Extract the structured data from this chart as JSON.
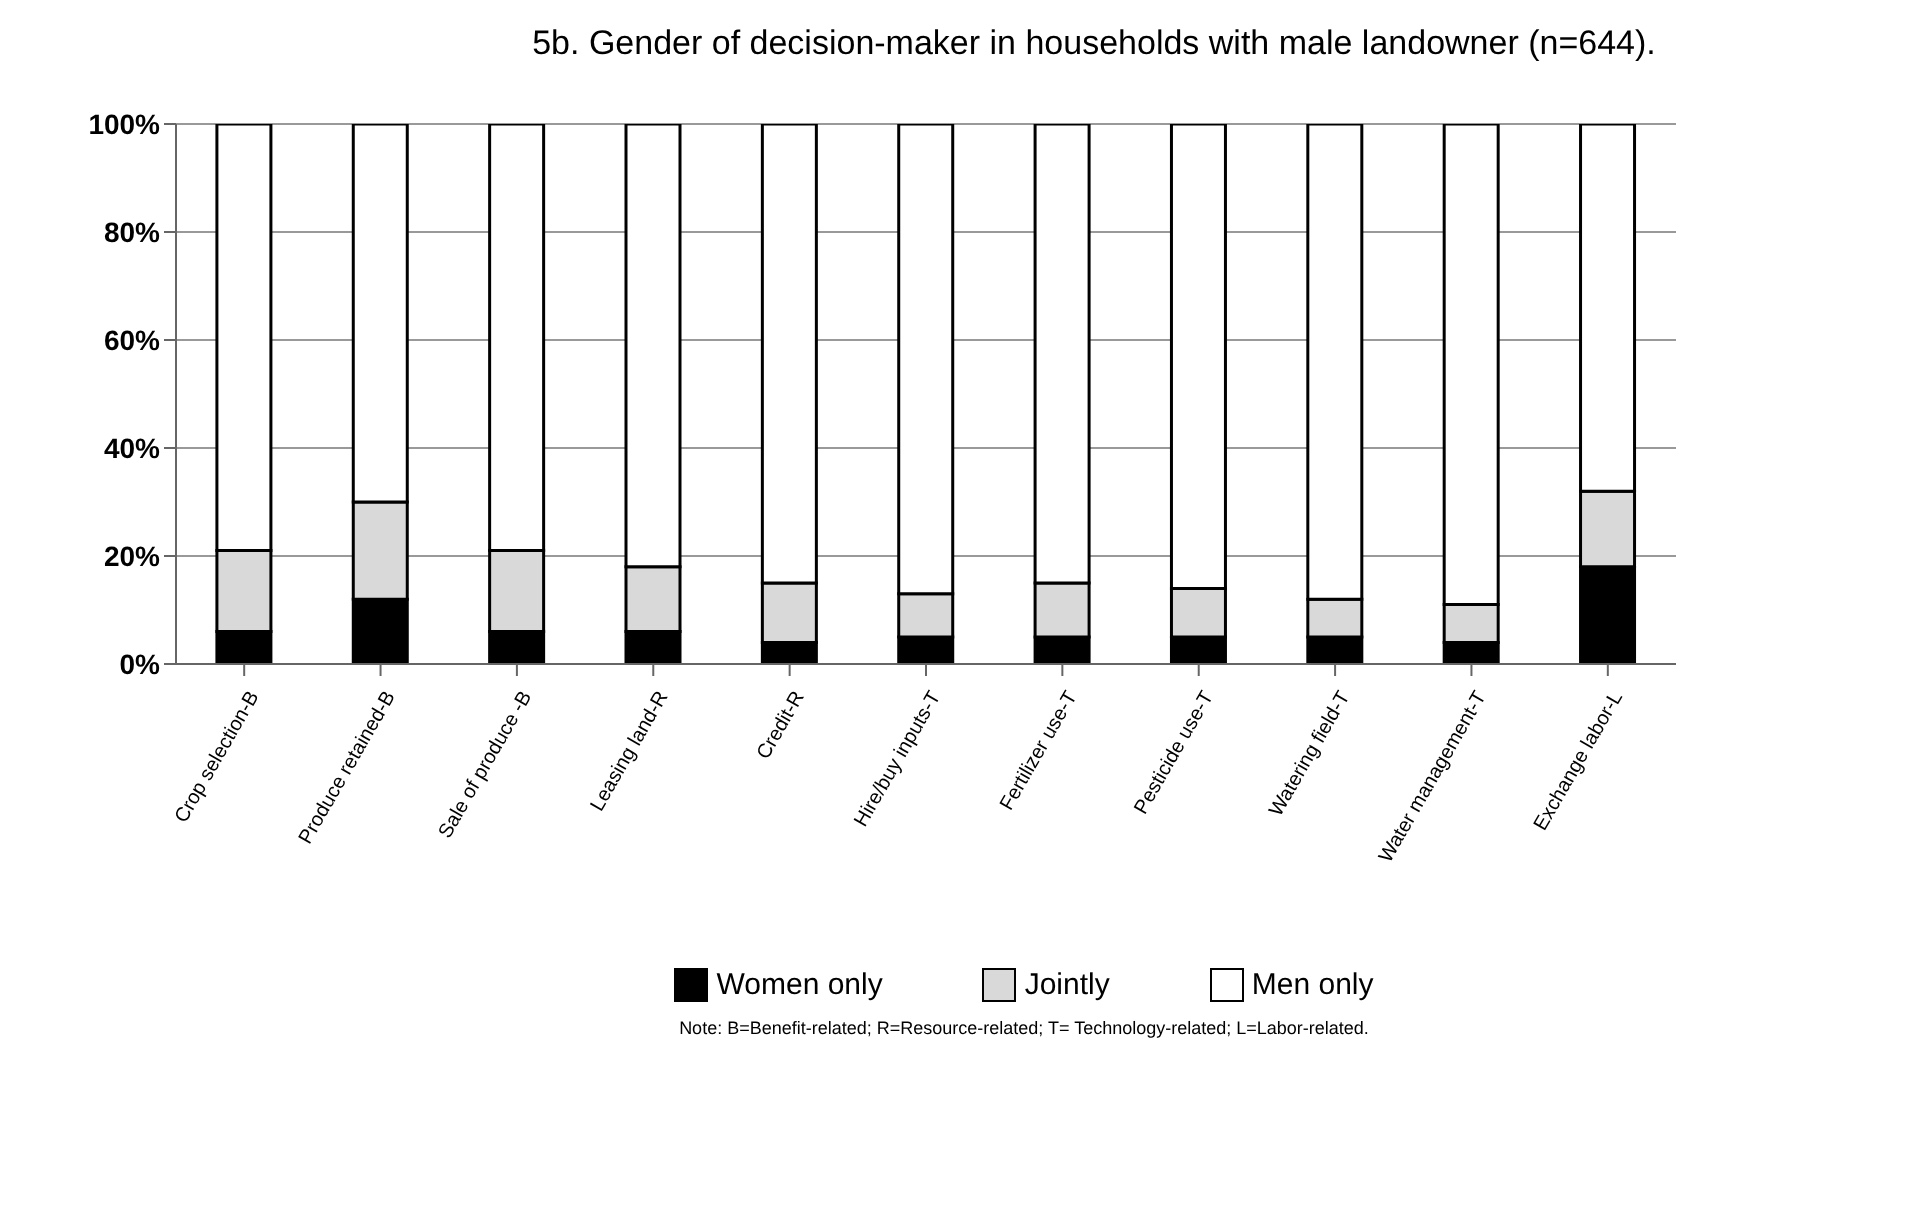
{
  "chart_data": {
    "type": "bar",
    "title": "5b. Gender of decision-maker in households with male landowner (n=644).",
    "categories": [
      "Crop selection-B",
      "Produce retained-B",
      "Sale of produce -B",
      "Leasing land-R",
      "Credit-R",
      "Hire/buy inputs-T",
      "Fertilizer use-T",
      "Pesticide use-T",
      "Watering field-T",
      "Water management-T",
      "Exchange labor-L"
    ],
    "series": [
      {
        "name": "Women only",
        "color": "#000000",
        "values": [
          6,
          12,
          6,
          6,
          4,
          5,
          5,
          5,
          5,
          4,
          18
        ]
      },
      {
        "name": "Jointly",
        "color": "#d9d9d9",
        "values": [
          15,
          18,
          15,
          12,
          11,
          8,
          10,
          9,
          7,
          7,
          14
        ]
      },
      {
        "name": "Men only",
        "color": "#ffffff",
        "values": [
          79,
          70,
          79,
          82,
          85,
          87,
          85,
          86,
          88,
          89,
          68
        ]
      }
    ],
    "stacked": true,
    "ylim": [
      0,
      100
    ],
    "yticks": [
      {
        "value": 0,
        "label": "0%"
      },
      {
        "value": 20,
        "label": "20%"
      },
      {
        "value": 40,
        "label": "40%"
      },
      {
        "value": 60,
        "label": "60%"
      },
      {
        "value": 80,
        "label": "80%"
      },
      {
        "value": 100,
        "label": "100%"
      }
    ],
    "grid": "y",
    "legend": "bottom",
    "annotations": [
      "Note: B=Benefit-related; R=Resource-related; T= Technology-related; L=Labor-related."
    ]
  }
}
